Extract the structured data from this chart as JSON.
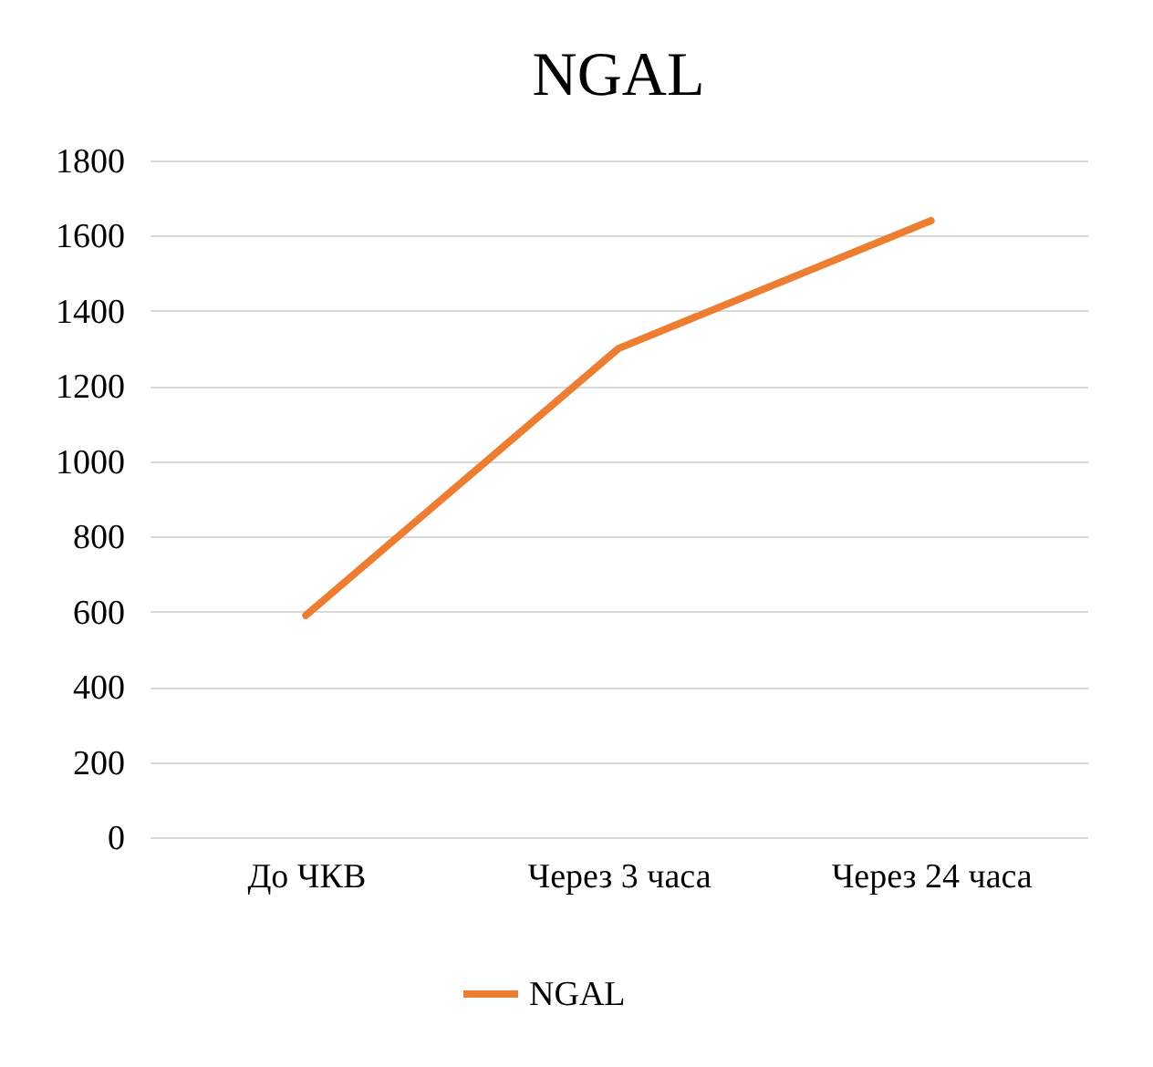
{
  "chart_data": {
    "type": "line",
    "title": "NGAL",
    "categories": [
      "До ЧКВ",
      "Через 3 часа",
      "Через 24 часа"
    ],
    "series": [
      {
        "name": "NGAL",
        "color": "#ed7d31",
        "values": [
          590,
          1300,
          1640
        ]
      }
    ],
    "ylim": [
      0,
      1800
    ],
    "yticks": [
      0,
      200,
      400,
      600,
      800,
      1000,
      1200,
      1400,
      1600,
      1800
    ],
    "grid": "y",
    "legend": "bottom",
    "marker": "none",
    "line_style": "solid"
  }
}
